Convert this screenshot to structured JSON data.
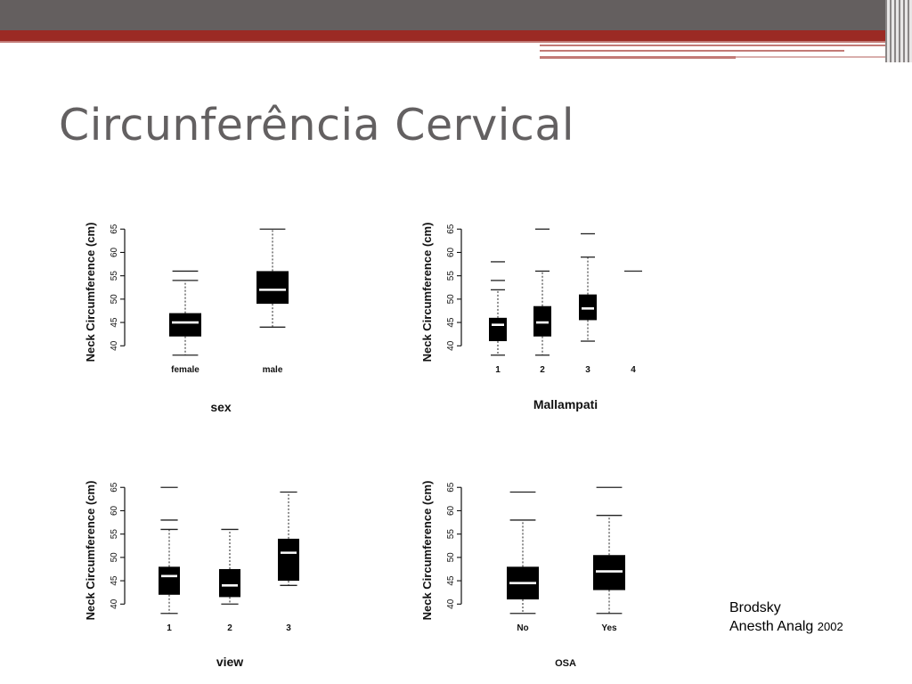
{
  "slide": {
    "title": "Circunferência Cervical",
    "citation": {
      "author": "Brodsky",
      "journal": "Anesth Analg",
      "year": "2002"
    },
    "colors": {
      "header_gray": "#645f5f",
      "header_red": "#9b2a24",
      "title": "#636061",
      "box_fill": "#000000",
      "median": "#ffffff"
    }
  },
  "chart_data": [
    {
      "type": "box",
      "ylabel": "Neck Circumference (cm)",
      "xlabel": "sex",
      "ylim": [
        37,
        66
      ],
      "yticks": [
        40,
        45,
        50,
        55,
        60,
        65
      ],
      "categories": [
        "female",
        "male"
      ],
      "boxes": [
        {
          "min": 38,
          "q1": 42,
          "median": 45,
          "q3": 47,
          "max": 54,
          "outliers": [
            56
          ]
        },
        {
          "min": 44,
          "q1": 49,
          "median": 52,
          "q3": 56,
          "max": 65,
          "outliers": []
        }
      ]
    },
    {
      "type": "box",
      "ylabel": "Neck Circumference (cm)",
      "xlabel": "Mallampati",
      "ylim": [
        37,
        66
      ],
      "yticks": [
        40,
        45,
        50,
        55,
        60,
        65
      ],
      "categories": [
        "1",
        "2",
        "3",
        "4"
      ],
      "boxes": [
        {
          "min": 38,
          "q1": 41,
          "median": 44.5,
          "q3": 46,
          "max": 52,
          "outliers": [
            54,
            58
          ]
        },
        {
          "min": 38,
          "q1": 42,
          "median": 45,
          "q3": 48.5,
          "max": 56,
          "outliers": [
            65
          ]
        },
        {
          "min": 41,
          "q1": 45.5,
          "median": 48,
          "q3": 51,
          "max": 59,
          "outliers": [
            64
          ]
        },
        {
          "min": 56,
          "q1": 56,
          "median": 56,
          "q3": 56,
          "max": 56,
          "outliers": []
        }
      ]
    },
    {
      "type": "box",
      "ylabel": "Neck Circumference (cm)",
      "xlabel": "view",
      "ylim": [
        37,
        66
      ],
      "yticks": [
        40,
        45,
        50,
        55,
        60,
        65
      ],
      "categories": [
        "1",
        "2",
        "3"
      ],
      "boxes": [
        {
          "min": 38,
          "q1": 42,
          "median": 46,
          "q3": 48,
          "max": 56,
          "outliers": [
            58,
            65
          ]
        },
        {
          "min": 40,
          "q1": 41.5,
          "median": 44,
          "q3": 47.5,
          "max": 56,
          "outliers": []
        },
        {
          "min": 44,
          "q1": 45,
          "median": 51,
          "q3": 54,
          "max": 64,
          "outliers": []
        }
      ]
    },
    {
      "type": "box",
      "ylabel": "Neck Circumference (cm)",
      "xlabel": "OSA",
      "ylim": [
        37,
        66
      ],
      "yticks": [
        40,
        45,
        50,
        55,
        60,
        65
      ],
      "categories": [
        "No",
        "Yes"
      ],
      "boxes": [
        {
          "min": 38,
          "q1": 41,
          "median": 44.5,
          "q3": 48,
          "max": 58,
          "outliers": [
            64
          ]
        },
        {
          "min": 38,
          "q1": 43,
          "median": 47,
          "q3": 50.5,
          "max": 59,
          "outliers": [
            65
          ]
        }
      ]
    }
  ]
}
